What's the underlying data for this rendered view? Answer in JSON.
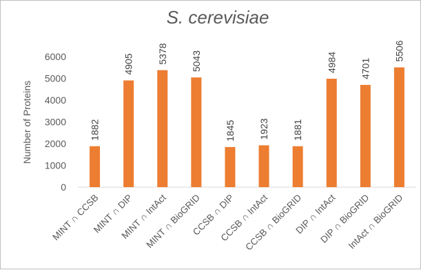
{
  "chart_data": {
    "type": "bar",
    "title": "S. cerevisiae",
    "ylabel": "Number of Proteins",
    "xlabel": "",
    "ylim": [
      0,
      6000
    ],
    "yticks": [
      "0",
      "1000",
      "2000",
      "3000",
      "4000",
      "5000",
      "6000"
    ],
    "grid": false,
    "legend": "none",
    "bar_color": "#ED7D31",
    "categories": [
      "MINT ∩ CCSB",
      "MINT ∩ DIP",
      "MINT ∩ IntAct",
      "MINT ∩ BioGRID",
      "CCSB ∩ DIP",
      "CCSB ∩ IntAct",
      "CCSB ∩ BioGRID",
      "DIP ∩ IntAct",
      "DIP ∩ BioGRID",
      "IntAct ∩ BioGRID"
    ],
    "values": [
      1882,
      4905,
      5378,
      5043,
      1845,
      1923,
      1881,
      4984,
      4701,
      5506
    ]
  }
}
